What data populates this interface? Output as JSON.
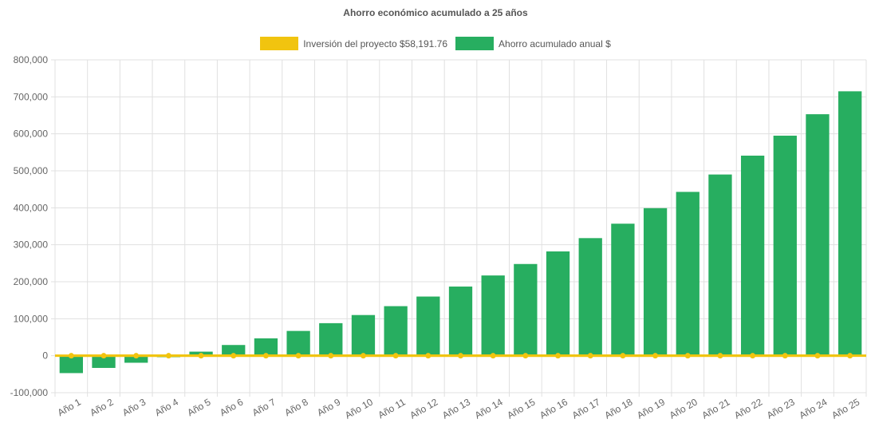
{
  "chart_data": {
    "type": "bar",
    "title": "Ahorro económico acumulado a 25 años",
    "categories": [
      "Año 1",
      "Año 2",
      "Año 3",
      "Año 4",
      "Año 5",
      "Año 6",
      "Año 7",
      "Año 8",
      "Año 9",
      "Año 10",
      "Año 11",
      "Año 12",
      "Año 13",
      "Año 14",
      "Año 15",
      "Año 16",
      "Año 17",
      "Año 18",
      "Año 19",
      "Año 20",
      "Año 21",
      "Año 22",
      "Año 23",
      "Año 24",
      "Año 25"
    ],
    "series": [
      {
        "name": "Inversión del proyecto $58,191.76",
        "type": "line",
        "color": "#f1c40f",
        "values": [
          0,
          0,
          0,
          0,
          0,
          0,
          0,
          0,
          0,
          0,
          0,
          0,
          0,
          0,
          0,
          0,
          0,
          0,
          0,
          0,
          0,
          0,
          0,
          0,
          0
        ]
      },
      {
        "name": "Ahorro acumulado anual $",
        "type": "bar",
        "color": "#27ae60",
        "values": [
          -47000,
          -33000,
          -19000,
          -4000,
          11000,
          29000,
          47000,
          67000,
          88000,
          110000,
          134000,
          160000,
          187000,
          217000,
          248000,
          282000,
          318000,
          357000,
          399000,
          443000,
          490000,
          541000,
          595000,
          653000,
          715000
        ]
      }
    ],
    "ylim": [
      -100000,
      800000
    ],
    "yticks": [
      "800,000",
      "700,000",
      "600,000",
      "500,000",
      "400,000",
      "300,000",
      "200,000",
      "100,000",
      "0",
      "-100,000"
    ],
    "ytick_values": [
      800000,
      700000,
      600000,
      500000,
      400000,
      300000,
      200000,
      100000,
      0,
      -100000
    ],
    "grid": true,
    "legend_position": "top"
  }
}
